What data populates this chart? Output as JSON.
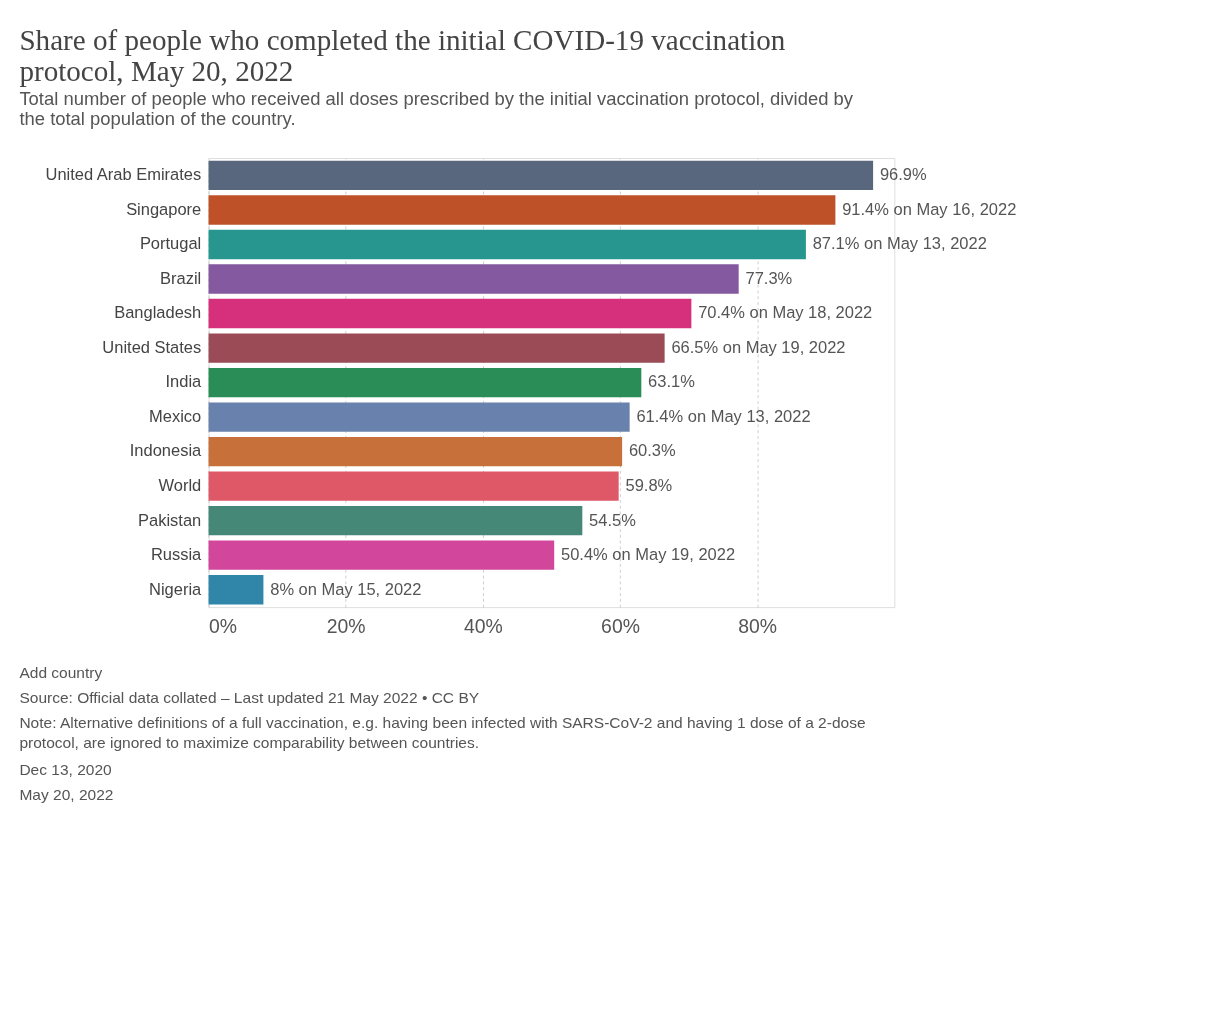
{
  "chart_data": {
    "type": "bar",
    "orientation": "horizontal",
    "title": "Share of people who completed the initial COVID-19 vaccination protocol, May 20, 2022",
    "subtitle": "Total number of people who received all doses prescribed by the initial vaccination protocol, divided by the total population of the country.",
    "categories": [
      "United Arab Emirates",
      "Singapore",
      "Portugal",
      "Brazil",
      "Bangladesh",
      "United States",
      "India",
      "Mexico",
      "Indonesia",
      "World",
      "Pakistan",
      "Russia",
      "Nigeria"
    ],
    "values": [
      96.9,
      91.4,
      87.1,
      77.3,
      70.4,
      66.5,
      63.1,
      61.4,
      60.3,
      59.8,
      54.5,
      50.4,
      8
    ],
    "colors": [
      "#58677e",
      "#be5128",
      "#27968f",
      "#8559a0",
      "#d62f7c",
      "#9a4b55",
      "#2a8c56",
      "#6882ad",
      "#c7703a",
      "#de5867",
      "#468877",
      "#d2479b",
      "#2f86a8"
    ],
    "value_labels": [
      "96.9%",
      "91.4% on May 16, 2022",
      "87.1% on May 13, 2022",
      "77.3%",
      "70.4% on May 18, 2022",
      "66.5% on May 19, 2022",
      "63.1%",
      "61.4% on May 13, 2022",
      "60.3%",
      "59.8%",
      "54.5%",
      "50.4% on May 19, 2022",
      "8% on May 15, 2022"
    ],
    "xlim": [
      0,
      100
    ],
    "xticks": [
      {
        "value": 0,
        "label": "0%"
      },
      {
        "value": 20,
        "label": "20%"
      },
      {
        "value": 40,
        "label": "40%"
      },
      {
        "value": 60,
        "label": "60%"
      },
      {
        "value": 80,
        "label": "80%"
      }
    ],
    "grid": "x",
    "annotations": [
      "Add country",
      "Source: Official data collated – Last updated 21 May 2022 • CC BY",
      "Note: Alternative definitions of a full vaccination, e.g. having been infected with SARS-CoV-2 and having 1 dose of a 2-dose protocol, are ignored to maximize comparability between countries.",
      "Dec 13, 2020",
      "May 20, 2022"
    ]
  }
}
